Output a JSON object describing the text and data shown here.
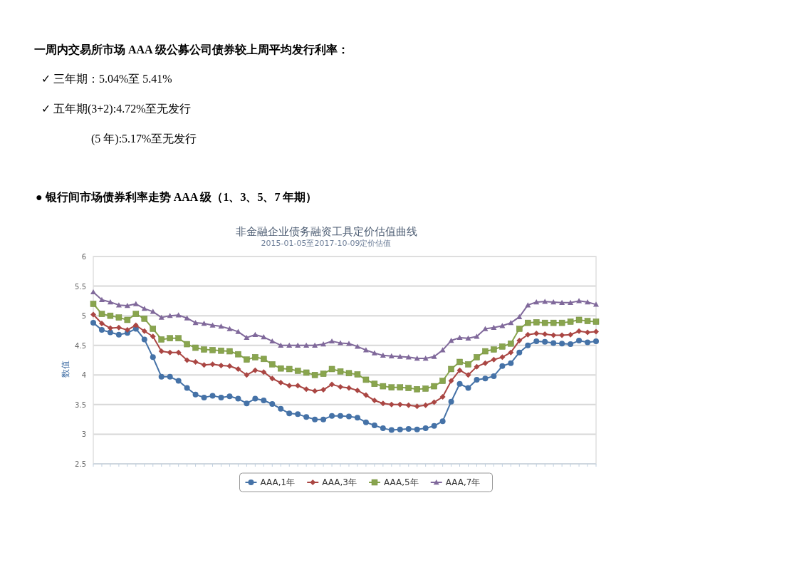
{
  "chart_data": {
    "type": "line",
    "title": "非金融企业债务融资工具定价估值曲线",
    "subtitle": "2015-01-05至2017-10-09定价估值",
    "ylabel": "数值",
    "annotations": [
      "一周内交易所市场 AAA 级公募公司债券较上周平均发行利率：",
      "✓  三年期：5.04%至 5.41%",
      "✓  五年期(3+2):4.72%至无发行",
      "(5 年):5.17%至无发行",
      "●   银行间市场债券利率走势 AAA 级（1、3、5、7 年期）"
    ],
    "categories": [
      null,
      null,
      null,
      null,
      null,
      null,
      null,
      null,
      null,
      null,
      null,
      null,
      null,
      null,
      null,
      null,
      null,
      null,
      null,
      null,
      null,
      null,
      null,
      null,
      null,
      null,
      null,
      null,
      null,
      null,
      null,
      null,
      null,
      null,
      null,
      null,
      null,
      null,
      null,
      null,
      null,
      null,
      null,
      null,
      null,
      null,
      null,
      null,
      null,
      null,
      null,
      null,
      null,
      null,
      null,
      null,
      null,
      null,
      null,
      null
    ],
    "series": [
      {
        "name": "AAA,1年",
        "color": "#4572a7",
        "marker": "circle",
        "values": [
          4.88,
          4.76,
          4.72,
          4.68,
          4.71,
          4.78,
          4.6,
          4.3,
          3.97,
          3.97,
          3.9,
          3.78,
          3.67,
          3.62,
          3.65,
          3.62,
          3.64,
          3.6,
          3.52,
          3.6,
          3.57,
          3.51,
          3.43,
          3.35,
          3.34,
          3.29,
          3.25,
          3.25,
          3.31,
          3.31,
          3.3,
          3.28,
          3.2,
          3.15,
          3.1,
          3.07,
          3.08,
          3.09,
          3.08,
          3.1,
          3.14,
          3.22,
          3.55,
          3.85,
          3.78,
          3.92,
          3.94,
          3.98,
          4.15,
          4.2,
          4.38,
          4.5,
          4.57,
          4.56,
          4.54,
          4.53,
          4.52,
          4.58,
          4.55,
          4.57
        ]
      },
      {
        "name": "AAA,3年",
        "color": "#aa4643",
        "marker": "diamond",
        "values": [
          5.02,
          4.87,
          4.79,
          4.8,
          4.76,
          4.84,
          4.74,
          4.65,
          4.4,
          4.38,
          4.38,
          4.25,
          4.22,
          4.17,
          4.18,
          4.16,
          4.15,
          4.1,
          4.0,
          4.08,
          4.05,
          3.94,
          3.87,
          3.82,
          3.82,
          3.76,
          3.73,
          3.75,
          3.84,
          3.8,
          3.78,
          3.74,
          3.66,
          3.57,
          3.52,
          3.5,
          3.5,
          3.49,
          3.47,
          3.49,
          3.54,
          3.63,
          3.9,
          4.08,
          4.0,
          4.14,
          4.2,
          4.26,
          4.3,
          4.38,
          4.58,
          4.68,
          4.7,
          4.69,
          4.67,
          4.67,
          4.68,
          4.74,
          4.72,
          4.73
        ]
      },
      {
        "name": "AAA,5年",
        "color": "#89a54e",
        "marker": "square",
        "values": [
          5.2,
          5.03,
          5.0,
          4.97,
          4.93,
          5.03,
          4.95,
          4.78,
          4.6,
          4.62,
          4.62,
          4.52,
          4.46,
          4.43,
          4.42,
          4.41,
          4.4,
          4.35,
          4.26,
          4.3,
          4.27,
          4.18,
          4.11,
          4.1,
          4.07,
          4.04,
          4.0,
          4.02,
          4.1,
          4.06,
          4.03,
          4.01,
          3.92,
          3.85,
          3.81,
          3.79,
          3.79,
          3.78,
          3.76,
          3.77,
          3.81,
          3.9,
          4.1,
          4.22,
          4.18,
          4.3,
          4.4,
          4.43,
          4.48,
          4.53,
          4.78,
          4.88,
          4.89,
          4.88,
          4.88,
          4.88,
          4.9,
          4.93,
          4.91,
          4.9
        ]
      },
      {
        "name": "AAA,7年",
        "color": "#80699b",
        "marker": "triangle",
        "values": [
          5.4,
          5.27,
          5.23,
          5.18,
          5.17,
          5.2,
          5.12,
          5.07,
          4.97,
          5.0,
          5.01,
          4.96,
          4.88,
          4.87,
          4.84,
          4.82,
          4.78,
          4.73,
          4.63,
          4.68,
          4.64,
          4.57,
          4.5,
          4.5,
          4.5,
          4.5,
          4.5,
          4.52,
          4.57,
          4.54,
          4.53,
          4.48,
          4.42,
          4.37,
          4.33,
          4.32,
          4.31,
          4.3,
          4.28,
          4.28,
          4.31,
          4.42,
          4.58,
          4.63,
          4.62,
          4.65,
          4.78,
          4.8,
          4.83,
          4.88,
          4.98,
          5.18,
          5.23,
          5.24,
          5.23,
          5.22,
          5.22,
          5.25,
          5.23,
          5.19
        ]
      }
    ],
    "ylim": [
      2.5,
      6
    ],
    "yticks": [
      2.5,
      3,
      3.5,
      4,
      4.5,
      5,
      5.5,
      6
    ],
    "grid": "y",
    "legend": "bottom"
  }
}
